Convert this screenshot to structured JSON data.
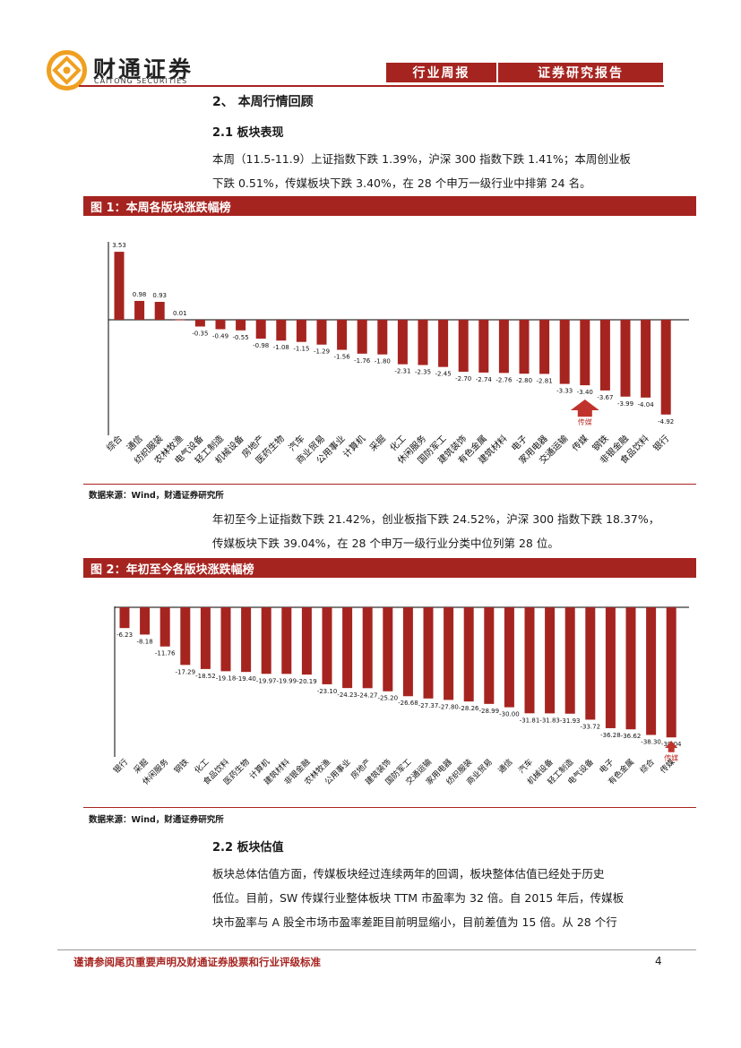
{
  "header": {
    "brand_cn": "财通证券",
    "brand_en": "CAITONG SECURITIES",
    "tab1": "行业周报",
    "tab2": "证券研究报告"
  },
  "section": {
    "title": "2、 本周行情回顾",
    "sub1": "2.1  板块表现",
    "para1_line1": "本周（11.5-11.9）上证指数下跌 1.39%，沪深 300 指数下跌 1.41%；本周创业板",
    "para1_line2": "下跌 0.51%，传媒板块下跌 3.40%，在 28 个申万一级行业中排第 24 名。",
    "fig1_title": "图 1：本周各版块涨跌幅榜",
    "source1": "数据来源：Wind，财通证券研究所",
    "para2_line1": "年初至今上证指数下跌 21.42%，创业板指下跌 24.52%，沪深 300 指数下跌 18.37%，",
    "para2_line2": "传媒板块下跌 39.04%，在 28 个申万一级行业分类中位列第 28 位。",
    "fig2_title": "图 2：年初至今各版块涨跌幅榜",
    "source2": "数据来源：Wind，财通证券研究所",
    "sub2": "2.2  板块估值",
    "para3_line1": "板块总体估值方面，传媒板块经过连续两年的回调，板块整体估值已经处于历史",
    "para3_line2": "低位。目前，SW 传媒行业整体板块 TTM 市盈率为 32 倍。自 2015 年后，传媒板",
    "para3_line3": "块市盈率与 A 股全市场市盈率差距目前明显缩小，目前差值为 15 倍。从 28 个行"
  },
  "footer": {
    "disclaimer": "谨请参阅尾页重要声明及财通证券股票和行业评级标准",
    "page": "4"
  },
  "colors": {
    "accent": "#a62420",
    "bar": "#a62420"
  },
  "chart_data": [
    {
      "type": "bar",
      "title": "图 1：本周各版块涨跌幅榜",
      "categories": [
        "综合",
        "通信",
        "纺织服装",
        "农林牧渔",
        "电气设备",
        "轻工制造",
        "机械设备",
        "房地产",
        "医药生物",
        "汽车",
        "商业贸易",
        "公用事业",
        "计算机",
        "采掘",
        "化工",
        "休闲服务",
        "国防军工",
        "建筑装饰",
        "有色金属",
        "建筑材料",
        "电子",
        "家用电器",
        "交通运输",
        "传媒",
        "钢铁",
        "非银金融",
        "食品饮料",
        "银行"
      ],
      "values": [
        3.53,
        0.98,
        0.93,
        0.01,
        -0.35,
        -0.49,
        -0.55,
        -0.98,
        -1.08,
        -1.15,
        -1.29,
        -1.56,
        -1.76,
        -1.8,
        -2.31,
        -2.35,
        -2.45,
        -2.7,
        -2.74,
        -2.76,
        -2.8,
        -2.81,
        -3.33,
        -3.4,
        -3.67,
        -3.99,
        -4.04,
        -4.92
      ],
      "labels": [
        "3.53",
        "0.98",
        "0.93",
        "0.01",
        "-0.35",
        "-0.49",
        "-0.55",
        "-0.98",
        "-1.08",
        "-1.15",
        "-1.29",
        "-1.56",
        "-1.76",
        "-1.80",
        "-2.31",
        "-2.35",
        "-2.45",
        "-2.70",
        "-2.74",
        "-2.76",
        "-2.80",
        "-2.81",
        "-3.33",
        "-3.40",
        "-3.67",
        "-3.99",
        "-4.04",
        "-4.92"
      ],
      "highlight": "传媒",
      "highlight_note": "传媒"
    },
    {
      "type": "bar",
      "title": "图 2：年初至今各版块涨跌幅榜",
      "categories": [
        "银行",
        "采掘",
        "休闲服务",
        "钢铁",
        "化工",
        "食品饮料",
        "医药生物",
        "计算机",
        "建筑材料",
        "非银金融",
        "农林牧渔",
        "公用事业",
        "房地产",
        "建筑装饰",
        "国防军工",
        "交通运输",
        "家用电器",
        "纺织服装",
        "商业贸易",
        "通信",
        "汽车",
        "机械设备",
        "轻工制造",
        "电气设备",
        "电子",
        "有色金属",
        "综合",
        "传媒"
      ],
      "values": [
        -6.23,
        -8.18,
        -11.76,
        -17.29,
        -18.52,
        -19.18,
        -19.4,
        -19.97,
        -19.99,
        -20.19,
        -23.1,
        -24.23,
        -24.27,
        -25.2,
        -26.68,
        -27.37,
        -27.8,
        -28.26,
        -28.99,
        -30.0,
        -31.81,
        -31.83,
        -31.93,
        -33.72,
        -36.28,
        -36.62,
        -38.3,
        -39.04
      ],
      "labels": [
        "-6.23",
        "-8.18",
        "-11.76",
        "-17.29",
        "-18.52",
        "-19.18",
        "-19.40",
        "-19.97",
        "-19.99",
        "-20.19",
        "-23.10",
        "-24.23",
        "-24.27",
        "-25.20",
        "-26.68",
        "-27.37",
        "-27.80",
        "-28.26",
        "-28.99",
        "-30.00",
        "-31.81",
        "-31.83",
        "-31.93",
        "-33.72",
        "-36.28",
        "-36.62",
        "-38.30",
        "-39.04"
      ],
      "highlight": "传媒",
      "highlight_note": "传媒"
    }
  ]
}
